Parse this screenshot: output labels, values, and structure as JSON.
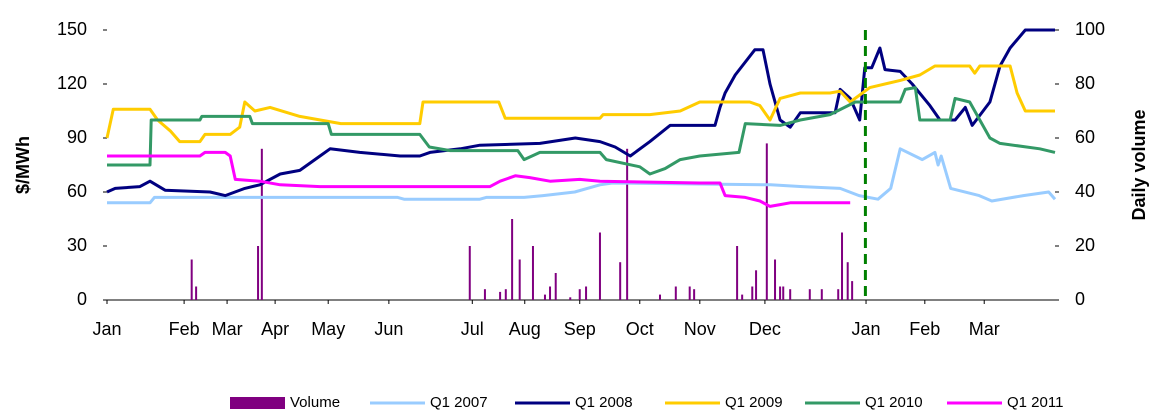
{
  "chart_data": {
    "type": "line",
    "ylabel": "$/MWh",
    "y2label": "Daily volume",
    "xlim": [
      0,
      15
    ],
    "ylim": [
      0,
      150
    ],
    "yticks": [
      0,
      30,
      60,
      90,
      120,
      150
    ],
    "y2lim": [
      0,
      100
    ],
    "y2ticks": [
      0,
      20,
      40,
      60,
      80,
      100
    ],
    "xticks": [
      {
        "value": 0,
        "label": "Jan"
      },
      {
        "value": 1.22,
        "label": "Feb"
      },
      {
        "value": 1.9,
        "label": "Mar"
      },
      {
        "value": 2.66,
        "label": "Apr"
      },
      {
        "value": 3.5,
        "label": "May"
      },
      {
        "value": 4.46,
        "label": "Jun"
      },
      {
        "value": 5.78,
        "label": "Jul"
      },
      {
        "value": 6.61,
        "label": "Aug"
      },
      {
        "value": 7.48,
        "label": "Sep"
      },
      {
        "value": 8.43,
        "label": "Oct"
      },
      {
        "value": 9.38,
        "label": "Nov"
      },
      {
        "value": 10.41,
        "label": "Dec"
      },
      {
        "value": 12.01,
        "label": "Jan"
      },
      {
        "value": 12.94,
        "label": "Feb"
      },
      {
        "value": 13.88,
        "label": "Mar"
      }
    ],
    "grid": false,
    "legend": "bottom",
    "reference_line": {
      "x": 12,
      "color": "#008000",
      "dashed": true
    },
    "series": [
      {
        "name": "Volume",
        "color": "#800080",
        "axis": "y2",
        "mark": "bar",
        "x": [
          1.34,
          1.41,
          2.39,
          2.45,
          5.74,
          5.98,
          6.22,
          6.31,
          6.41,
          6.53,
          6.74,
          6.93,
          7.01,
          7.1,
          7.33,
          7.48,
          7.58,
          7.8,
          8.12,
          8.23,
          8.75,
          9.0,
          9.22,
          9.29,
          9.97,
          10.05,
          10.21,
          10.27,
          10.44,
          10.57,
          10.65,
          10.7,
          10.81,
          11.12,
          11.31,
          11.57,
          11.63,
          11.72,
          11.79
        ],
        "values": [
          15,
          5,
          20,
          56,
          20,
          4,
          3,
          4,
          30,
          15,
          20,
          2,
          5,
          10,
          1,
          4,
          5,
          25,
          14,
          56,
          2,
          5,
          5,
          4,
          20,
          2,
          5,
          11,
          58,
          15,
          5,
          5,
          4,
          4,
          4,
          4,
          25,
          14,
          7
        ]
      },
      {
        "name": "Q1 2007",
        "color": "#99ccff",
        "mark": "line",
        "x": [
          0,
          0.68,
          0.75,
          4.6,
          4.7,
          5.9,
          6.0,
          6.6,
          6.9,
          7.4,
          7.8,
          8.0,
          10.5,
          11.0,
          11.6,
          11.9,
          12.2,
          12.4,
          12.55,
          12.9,
          13.1,
          13.15,
          13.2,
          13.35,
          13.8,
          14.0,
          14.5,
          14.9,
          15
        ],
        "values": [
          54,
          54,
          57,
          57,
          56,
          56,
          57,
          57,
          58,
          60,
          64,
          65,
          64,
          63,
          62,
          58,
          56,
          62,
          84,
          78,
          82,
          75,
          80,
          62,
          58,
          55,
          58,
          60,
          56
        ]
      },
      {
        "name": "Q1 2008",
        "color": "#000080",
        "mark": "line",
        "x": [
          0,
          0.13,
          0.52,
          0.68,
          0.92,
          1.63,
          1.87,
          2.18,
          2.42,
          2.74,
          3.05,
          3.37,
          3.53,
          4.0,
          4.64,
          4.95,
          5.11,
          5.59,
          5.9,
          6.85,
          7.41,
          7.8,
          8.04,
          8.28,
          8.59,
          8.91,
          9.62,
          9.7,
          9.78,
          9.94,
          10.25,
          10.38,
          10.49,
          10.65,
          10.81,
          10.97,
          11.52,
          11.6,
          11.76,
          11.91,
          11.99,
          12.1,
          12.23,
          12.31,
          12.55,
          12.74,
          13.02,
          13.18,
          13.42,
          13.58,
          13.69,
          13.97,
          14.13,
          14.29,
          14.53,
          15
        ],
        "values": [
          60,
          62,
          63,
          66,
          61,
          60,
          58,
          62,
          64,
          70,
          72,
          80,
          84,
          82,
          80,
          80,
          82,
          84,
          86,
          87,
          90,
          88,
          85,
          80,
          88,
          97,
          97,
          107,
          115,
          125,
          139,
          139,
          120,
          100,
          96,
          104,
          104,
          117,
          112,
          100,
          129,
          129,
          140,
          128,
          127,
          120,
          108,
          100,
          100,
          107,
          97,
          110,
          130,
          140,
          150,
          150
        ]
      },
      {
        "name": "Q1 2009",
        "color": "#ffcc00",
        "mark": "line",
        "x": [
          0,
          0.1,
          0.68,
          0.8,
          1.0,
          1.15,
          1.47,
          1.55,
          1.95,
          2.1,
          2.18,
          2.34,
          2.58,
          3.05,
          3.7,
          4.95,
          5.0,
          6.2,
          6.3,
          7.8,
          7.85,
          8.59,
          9.07,
          9.38,
          10.17,
          10.33,
          10.49,
          10.65,
          10.97,
          11.44,
          11.6,
          11.76,
          12.07,
          12.55,
          12.86,
          13.1,
          13.65,
          13.73,
          13.81,
          14.29,
          14.4,
          14.53,
          15
        ],
        "values": [
          90,
          106,
          106,
          100,
          94,
          88,
          88,
          92,
          92,
          96,
          110,
          105,
          107,
          102,
          98,
          98,
          110,
          110,
          101,
          101,
          103,
          103,
          105,
          110,
          110,
          108,
          100,
          112,
          115,
          115,
          116,
          110,
          118,
          122,
          125,
          130,
          130,
          126,
          130,
          130,
          115,
          105,
          105
        ]
      },
      {
        "name": "Q1 2010",
        "color": "#339966",
        "mark": "line",
        "x": [
          0,
          0.68,
          0.7,
          1.47,
          1.5,
          2.26,
          2.3,
          3.5,
          3.55,
          4.95,
          5.1,
          5.43,
          6.5,
          6.6,
          6.85,
          7.8,
          7.9,
          8.43,
          8.59,
          8.83,
          9.07,
          9.38,
          10.0,
          10.1,
          10.65,
          10.97,
          11.44,
          11.84,
          12.55,
          12.63,
          12.79,
          12.86,
          13.34,
          13.42,
          13.65,
          13.81,
          13.97,
          14.13,
          14.76,
          15
        ],
        "values": [
          75,
          75,
          100,
          100,
          102,
          102,
          98,
          98,
          92,
          92,
          85,
          83,
          83,
          78,
          82,
          82,
          78,
          74,
          70,
          73,
          78,
          80,
          82,
          98,
          97,
          100,
          103,
          110,
          110,
          117,
          118,
          100,
          100,
          112,
          110,
          100,
          90,
          87,
          84,
          82
        ]
      },
      {
        "name": "Q1 2011",
        "color": "#ff00ff",
        "mark": "line",
        "x": [
          0,
          1.47,
          1.55,
          1.87,
          1.95,
          2.03,
          2.42,
          2.74,
          3.37,
          6.06,
          6.22,
          6.46,
          6.69,
          7.01,
          7.48,
          7.8,
          9.38,
          9.7,
          9.78,
          10.1,
          10.33,
          10.49,
          10.65,
          10.81,
          11.76
        ],
        "values": [
          80,
          80,
          82,
          82,
          80,
          67,
          66,
          64,
          63,
          63,
          66,
          69,
          68,
          66,
          67,
          66,
          65,
          65,
          58,
          57,
          55,
          52,
          53,
          54,
          54
        ]
      }
    ]
  }
}
